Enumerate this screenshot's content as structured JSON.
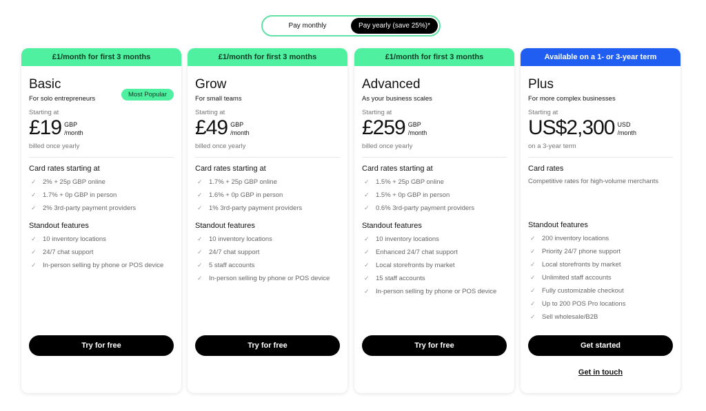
{
  "billing_toggle": {
    "monthly": "Pay monthly",
    "yearly": "Pay yearly (save 25%)*",
    "selected": "yearly"
  },
  "colors": {
    "promo_green": "#4ff0a0",
    "plus_blue": "#1f5ef0",
    "button": "#000000"
  },
  "plans": [
    {
      "banner": "£1/month for first 3 months",
      "name": "Basic",
      "badge": "Most Popular",
      "tagline": "For solo entrepreneurs",
      "starting": "Starting at",
      "price": "£19",
      "currency": "GBP",
      "period": "/month",
      "billing": "billed once yearly",
      "rates_title": "Card rates starting at",
      "rates": [
        "2% + 25p GBP online",
        "1.7% + 0p GBP in person",
        "2% 3rd-party payment providers"
      ],
      "features_title": "Standout features",
      "features": [
        "10 inventory locations",
        "24/7 chat support",
        "In-person selling by phone or POS device"
      ],
      "cta": "Try for free"
    },
    {
      "banner": "£1/month for first 3 months",
      "name": "Grow",
      "tagline": "For small teams",
      "starting": "Starting at",
      "price": "£49",
      "currency": "GBP",
      "period": "/month",
      "billing": "billed once yearly",
      "rates_title": "Card rates starting at",
      "rates": [
        "1.7% + 25p GBP online",
        "1.6% + 0p GBP in person",
        "1% 3rd-party payment providers"
      ],
      "features_title": "Standout features",
      "features": [
        "10 inventory locations",
        "24/7 chat support",
        "5 staff accounts",
        "In-person selling by phone or POS device"
      ],
      "cta": "Try for free"
    },
    {
      "banner": "£1/month for first 3 months",
      "name": "Advanced",
      "tagline": "As your business scales",
      "starting": "Starting at",
      "price": "£259",
      "currency": "GBP",
      "period": "/month",
      "billing": "billed once yearly",
      "rates_title": "Card rates starting at",
      "rates": [
        "1.5% + 25p GBP online",
        "1.5% + 0p GBP in person",
        "0.6% 3rd-party payment providers"
      ],
      "features_title": "Standout features",
      "features": [
        "10 inventory locations",
        "Enhanced 24/7 chat support",
        "Local storefronts by market",
        "15 staff accounts",
        "In-person selling by phone or POS device"
      ],
      "cta": "Try for free"
    },
    {
      "banner": "Available on a 1- or 3-year term",
      "name": "Plus",
      "tagline": "For more complex businesses",
      "starting": "Starting at",
      "price": "US$2,300",
      "currency": "USD",
      "period": "/month",
      "billing": "on a 3-year term",
      "rates_title": "Card rates",
      "rates_desc": "Competitive rates for high-volume merchants",
      "features_title": "Standout features",
      "features": [
        "200 inventory locations",
        "Priority 24/7 phone support",
        "Local storefronts by market",
        "Unlimited staff accounts",
        "Fully customizable checkout",
        "Up to 200 POS Pro locations",
        "Sell wholesale/B2B"
      ],
      "cta": "Get started",
      "secondary_cta": "Get in touch"
    }
  ]
}
